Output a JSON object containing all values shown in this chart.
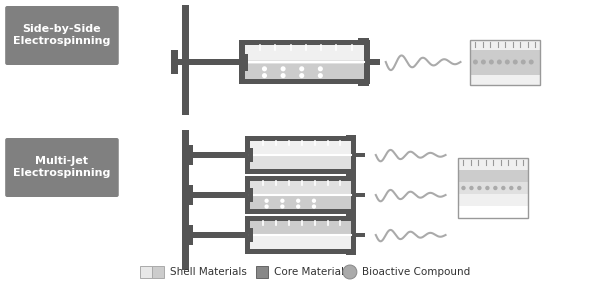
{
  "fig_width": 5.91,
  "fig_height": 2.92,
  "bg_color": "#ffffff",
  "label_box_color": "#808080",
  "label_text_color": "#ffffff",
  "label1": "Side-by-Side\nElectrospinning",
  "label2": "Multi-Jet\nElectrospinning",
  "legend_items": [
    {
      "label": "Shell Materials",
      "type": "rect2",
      "colors": [
        "#e8e8e8",
        "#cccccc"
      ]
    },
    {
      "label": "Core Material",
      "type": "rect1",
      "color": "#888888"
    },
    {
      "label": "Bioactive Compound",
      "type": "circle",
      "color": "#aaaaaa"
    }
  ],
  "dark_gray": "#555555",
  "mid_gray": "#888888",
  "light_gray": "#cccccc",
  "lighter_gray": "#e0e0e0",
  "very_light_gray": "#f0f0f0",
  "wave_color": "#aaaaaa",
  "plunger_color": "#dddddd"
}
